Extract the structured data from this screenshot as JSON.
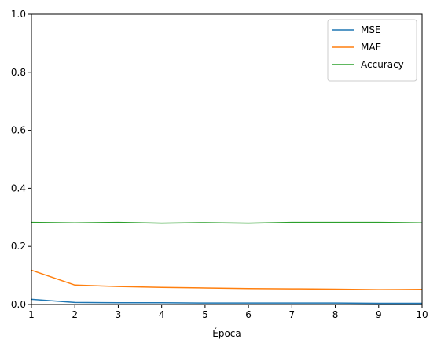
{
  "chart_data": {
    "type": "line",
    "title": "",
    "xlabel": "Época",
    "ylabel": "",
    "x": [
      1,
      2,
      3,
      4,
      5,
      6,
      7,
      8,
      9,
      10
    ],
    "xlim": [
      1,
      10
    ],
    "ylim": [
      0,
      1
    ],
    "xticks": [
      1,
      2,
      3,
      4,
      5,
      6,
      7,
      8,
      9,
      10
    ],
    "yticks": [
      0.0,
      0.2,
      0.4,
      0.6,
      0.8,
      1.0
    ],
    "ytick_labels": [
      "0.0",
      "0.2",
      "0.4",
      "0.6",
      "0.8",
      "1.0"
    ],
    "grid": false,
    "legend_position": "top-right",
    "series": [
      {
        "name": "MSE",
        "color": "#1f77b4",
        "values": [
          0.018,
          0.007,
          0.006,
          0.006,
          0.005,
          0.005,
          0.005,
          0.005,
          0.004,
          0.004
        ]
      },
      {
        "name": "MAE",
        "color": "#ff7f0e",
        "values": [
          0.118,
          0.067,
          0.062,
          0.059,
          0.057,
          0.055,
          0.054,
          0.053,
          0.051,
          0.052
        ]
      },
      {
        "name": "Accuracy",
        "color": "#2ca02c",
        "values": [
          0.283,
          0.281,
          0.283,
          0.28,
          0.282,
          0.28,
          0.283,
          0.283,
          0.283,
          0.281
        ]
      }
    ]
  }
}
